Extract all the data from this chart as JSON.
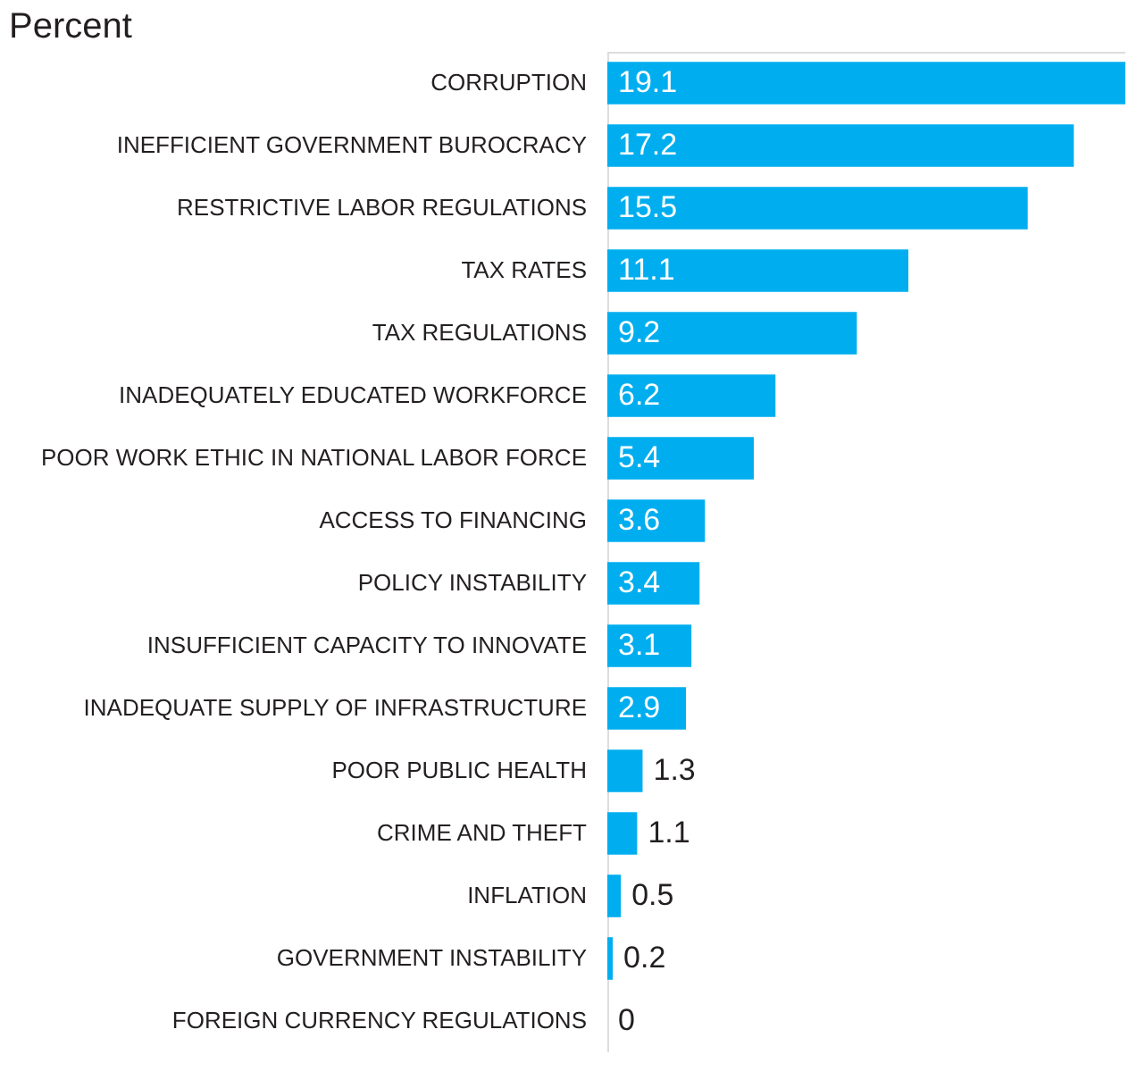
{
  "chart_data": {
    "type": "bar",
    "orientation": "horizontal",
    "title": "Percent",
    "categories": [
      "CORRUPTION",
      "INEFFICIENT GOVERNMENT BUROCRACY",
      "RESTRICTIVE LABOR REGULATIONS",
      "TAX RATES",
      "TAX REGULATIONS",
      "INADEQUATELY EDUCATED WORKFORCE",
      "POOR WORK ETHIC IN NATIONAL LABOR FORCE",
      "ACCESS TO FINANCING",
      "POLICY INSTABILITY",
      "INSUFFICIENT CAPACITY TO INNOVATE",
      "INADEQUATE SUPPLY OF INFRASTRUCTURE",
      "POOR PUBLIC HEALTH",
      "CRIME AND THEFT",
      "INFLATION",
      "GOVERNMENT INSTABILITY",
      "FOREIGN CURRENCY REGULATIONS"
    ],
    "values": [
      19.1,
      17.2,
      15.5,
      11.1,
      9.2,
      6.2,
      5.4,
      3.6,
      3.4,
      3.1,
      2.9,
      1.3,
      1.1,
      0.5,
      0.2,
      0
    ],
    "color": "#00aeef",
    "data_labels": true
  }
}
